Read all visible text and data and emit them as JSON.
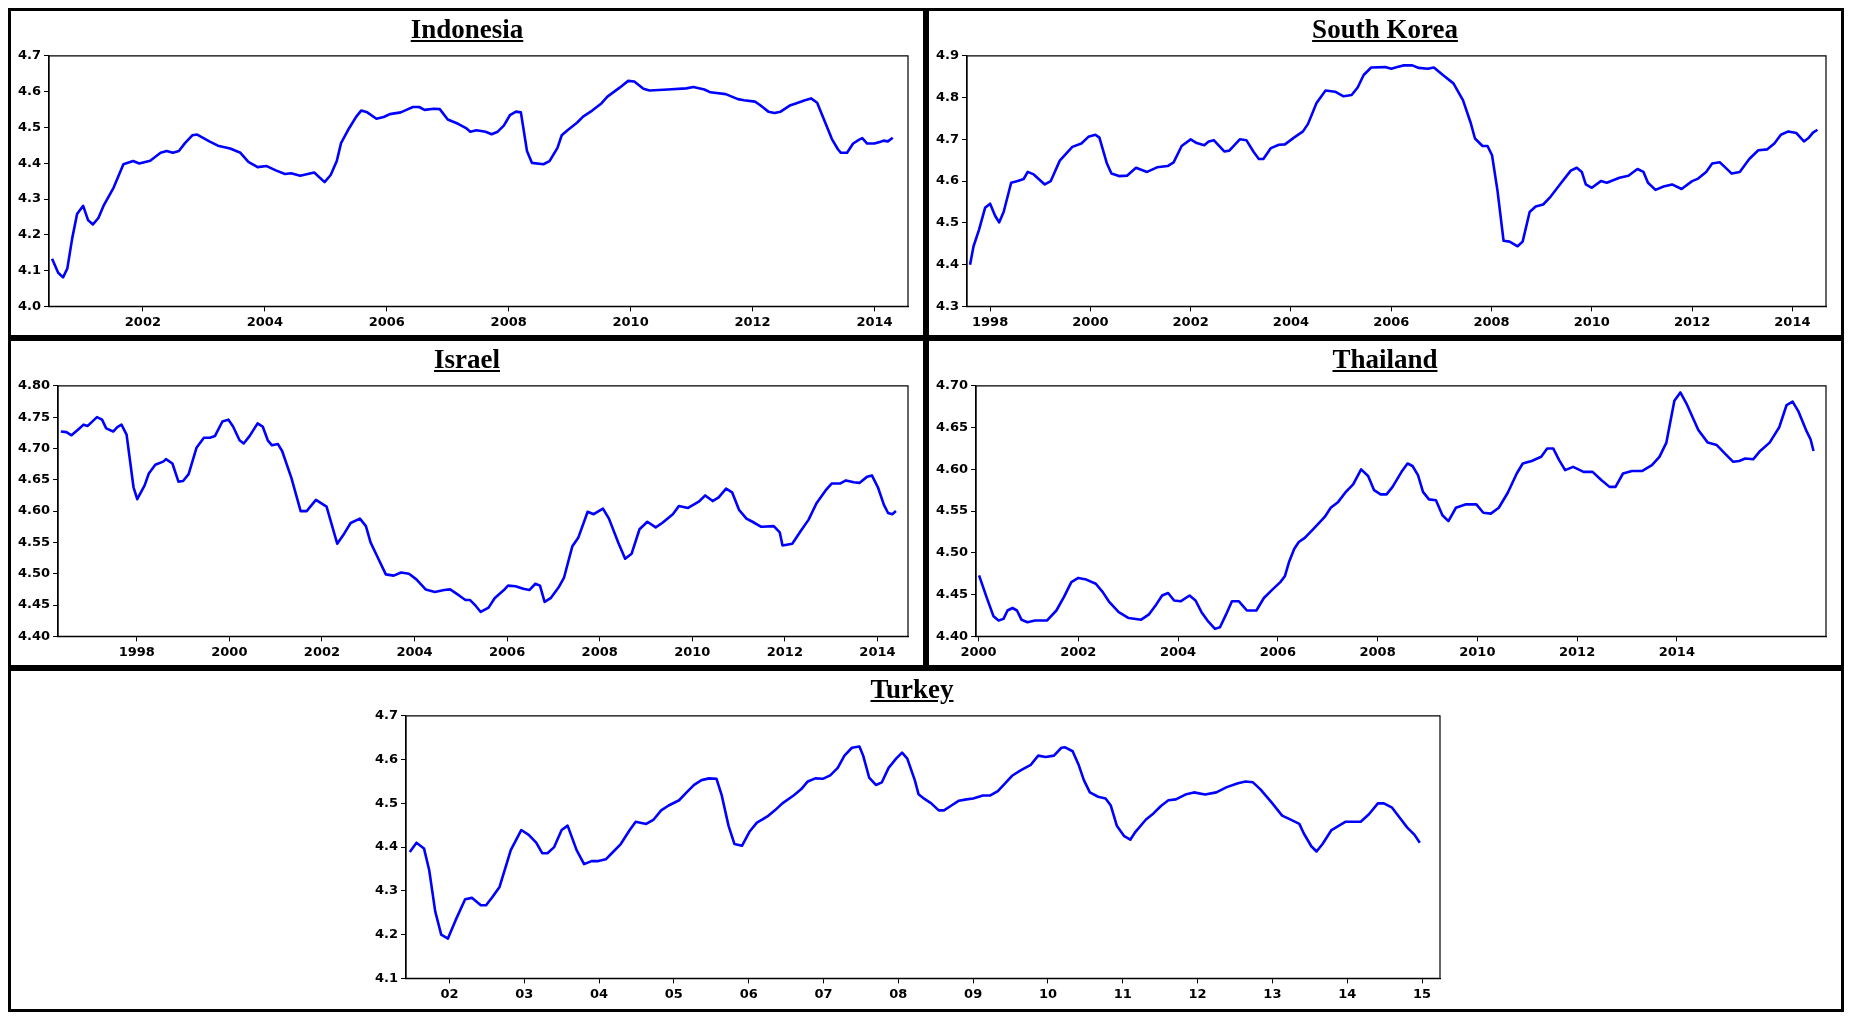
{
  "chart_data": [
    {
      "type": "line",
      "title": "Indonesia",
      "color": "#0000ff",
      "x": [
        2001.01,
        2001.11,
        2001.19,
        2001.26,
        2001.34,
        2001.42,
        2001.52,
        2001.6,
        2001.68,
        2001.77,
        2001.86,
        2002.02,
        2002.18,
        2002.34,
        2002.44,
        2002.62,
        2002.79,
        2002.89,
        2002.99,
        2003.09,
        2003.19,
        2003.31,
        2003.39,
        2003.59,
        2003.73,
        2003.93,
        2004.1,
        2004.23,
        2004.38,
        2004.53,
        2004.68,
        2004.83,
        2004.93,
        2005.08,
        2005.31,
        2005.48,
        2005.58,
        2005.68,
        2005.75,
        2005.88,
        2006.0,
        2006.08,
        2006.18,
        2006.33,
        2006.45,
        2006.55,
        2006.73,
        2006.85,
        2006.93,
        2007.03,
        2007.12,
        2007.27,
        2007.37,
        2007.5,
        2007.67,
        2007.8,
        2007.87,
        2007.97,
        2008.12,
        2008.22,
        2008.32,
        2008.42,
        2008.52,
        2008.62,
        2008.7,
        2008.8,
        2008.88,
        2009.07,
        2009.17,
        2009.3,
        2009.37,
        2009.47,
        2009.62,
        2009.72,
        2009.87,
        2010.02,
        2010.12,
        2010.32,
        2010.46,
        2010.56,
        2010.71,
        2010.81,
        2011.11,
        2011.41,
        2011.53,
        2011.71,
        2011.81,
        2012.06,
        2012.26,
        2012.36,
        2012.54,
        2012.61,
        2012.76,
        2012.86,
        2012.96,
        2013.11,
        2013.21,
        2013.36,
        2013.46,
        2013.56,
        2013.66,
        2013.8,
        2013.9,
        2013.95,
        2014.05,
        2014.15,
        2014.25,
        2014.3,
        2014.38,
        2014.5,
        2014.6,
        2014.65,
        2014.72,
        2014.8
      ],
      "values": [
        4.133,
        4.094,
        4.081,
        4.106,
        4.19,
        4.258,
        4.281,
        4.241,
        4.229,
        4.247,
        4.283,
        4.332,
        4.397,
        4.406,
        4.399,
        4.407,
        4.429,
        4.434,
        4.429,
        4.434,
        4.456,
        4.478,
        4.48,
        4.461,
        4.449,
        4.441,
        4.429,
        4.404,
        4.389,
        4.392,
        4.38,
        4.37,
        4.372,
        4.365,
        4.374,
        4.347,
        4.367,
        4.406,
        4.456,
        4.497,
        4.53,
        4.547,
        4.542,
        4.524,
        4.529,
        4.537,
        4.542,
        4.551,
        4.557,
        4.557,
        4.549,
        4.552,
        4.551,
        4.522,
        4.51,
        4.498,
        4.488,
        4.492,
        4.488,
        4.481,
        4.488,
        4.505,
        4.534,
        4.544,
        4.542,
        4.434,
        4.401,
        4.397,
        4.406,
        4.443,
        4.478,
        4.493,
        4.513,
        4.53,
        4.547,
        4.567,
        4.586,
        4.611,
        4.63,
        4.628,
        4.608,
        4.603,
        4.606,
        4.609,
        4.613,
        4.606,
        4.598,
        4.593,
        4.579,
        4.576,
        4.572,
        4.564,
        4.544,
        4.54,
        4.544,
        4.561,
        4.567,
        4.576,
        4.581,
        4.569,
        4.527,
        4.468,
        4.439,
        4.429,
        4.429,
        4.455,
        4.466,
        4.47,
        4.455,
        4.455,
        4.46,
        4.463,
        4.461,
        4.471
      ],
      "xlim": [
        2000.96,
        2015.05
      ],
      "ylim": [
        4.0,
        4.7
      ],
      "xticks": [
        {
          "value": 2002.5,
          "label": "2002"
        },
        {
          "value": 2004.5,
          "label": "2004"
        },
        {
          "value": 2006.5,
          "label": "2006"
        },
        {
          "value": 2008.5,
          "label": "2008"
        },
        {
          "value": 2010.5,
          "label": "2010"
        },
        {
          "value": 2012.5,
          "label": "2012"
        },
        {
          "value": 2014.5,
          "label": "2014"
        }
      ],
      "yticks": [
        {
          "value": 4.0,
          "label": "4.0"
        },
        4.1,
        4.2,
        4.3,
        4.4,
        4.5,
        4.6,
        4.7
      ]
    },
    {
      "type": "line",
      "title": "South Korea",
      "color": "#0000ff",
      "x": [
        1998.1,
        1998.17,
        1998.28,
        1998.4,
        1998.5,
        1998.6,
        1998.68,
        1998.77,
        1998.92,
        1999.05,
        1999.17,
        1999.25,
        1999.37,
        1999.59,
        1999.71,
        1999.89,
        2000.14,
        2000.32,
        2000.46,
        2000.6,
        2000.68,
        2000.83,
        2000.92,
        2001.07,
        2001.23,
        2001.41,
        2001.63,
        2001.83,
        2002.04,
        2002.16,
        2002.32,
        2002.5,
        2002.62,
        2002.77,
        2002.86,
        2002.96,
        2003.17,
        2003.27,
        2003.48,
        2003.61,
        2003.76,
        2003.86,
        2003.95,
        2004.1,
        2004.26,
        2004.38,
        2004.56,
        2004.74,
        2004.84,
        2005.01,
        2005.19,
        2005.38,
        2005.55,
        2005.71,
        2005.83,
        2005.95,
        2006.1,
        2006.38,
        2006.5,
        2006.62,
        2006.74,
        2006.92,
        2007.05,
        2007.23,
        2007.35,
        2007.53,
        2007.74,
        2007.93,
        2008.08,
        2008.17,
        2008.32,
        2008.42,
        2008.51,
        2008.62,
        2008.74,
        2008.86,
        2009.02,
        2009.12,
        2009.26,
        2009.38,
        2009.53,
        2009.68,
        2009.89,
        2010.08,
        2010.2,
        2010.3,
        2010.38,
        2010.5,
        2010.68,
        2010.8,
        2011.05,
        2011.23,
        2011.41,
        2011.53,
        2011.62,
        2011.77,
        2011.93,
        2012.1,
        2012.29,
        2012.5,
        2012.62,
        2012.78,
        2012.9,
        2013.05,
        2013.15,
        2013.29,
        2013.45,
        2013.64,
        2013.82,
        2014.0,
        2014.14,
        2014.27,
        2014.42,
        2014.58,
        2014.73,
        2014.82,
        2014.91,
        2015.0
      ],
      "values": [
        4.4,
        4.444,
        4.484,
        4.536,
        4.546,
        4.517,
        4.501,
        4.526,
        4.596,
        4.6,
        4.605,
        4.622,
        4.616,
        4.592,
        4.6,
        4.649,
        4.682,
        4.69,
        4.706,
        4.711,
        4.704,
        4.642,
        4.618,
        4.612,
        4.613,
        4.632,
        4.622,
        4.633,
        4.636,
        4.645,
        4.684,
        4.7,
        4.691,
        4.686,
        4.695,
        4.698,
        4.671,
        4.673,
        4.7,
        4.698,
        4.669,
        4.653,
        4.653,
        4.679,
        4.687,
        4.688,
        4.704,
        4.719,
        4.737,
        4.787,
        4.817,
        4.814,
        4.803,
        4.806,
        4.824,
        4.854,
        4.872,
        4.873,
        4.869,
        4.873,
        4.877,
        4.877,
        4.871,
        4.869,
        4.872,
        4.854,
        4.834,
        4.794,
        4.741,
        4.702,
        4.684,
        4.684,
        4.662,
        4.576,
        4.457,
        4.455,
        4.444,
        4.455,
        4.526,
        4.539,
        4.544,
        4.563,
        4.596,
        4.625,
        4.632,
        4.622,
        4.592,
        4.584,
        4.6,
        4.596,
        4.608,
        4.613,
        4.629,
        4.622,
        4.596,
        4.579,
        4.587,
        4.592,
        4.581,
        4.6,
        4.606,
        4.622,
        4.642,
        4.645,
        4.634,
        4.618,
        4.622,
        4.653,
        4.674,
        4.676,
        4.69,
        4.711,
        4.719,
        4.715,
        4.695,
        4.703,
        4.716,
        4.723
      ],
      "xlim": [
        1998.04,
        2015.17
      ],
      "ylim": [
        4.3,
        4.9
      ],
      "xticks": [
        {
          "value": 1998.5,
          "label": "1998"
        },
        {
          "value": 2000.5,
          "label": "2000"
        },
        {
          "value": 2002.5,
          "label": "2002"
        },
        {
          "value": 2004.5,
          "label": "2004"
        },
        {
          "value": 2006.5,
          "label": "2006"
        },
        {
          "value": 2008.5,
          "label": "2008"
        },
        {
          "value": 2010.5,
          "label": "2010"
        },
        {
          "value": 2012.5,
          "label": "2012"
        },
        {
          "value": 2014.5,
          "label": "2014"
        }
      ],
      "yticks": [
        4.3,
        4.4,
        4.5,
        4.6,
        4.7,
        4.8,
        4.9
      ]
    },
    {
      "type": "line",
      "title": "Israel",
      "color": "#0000ff",
      "x": [
        1996.86,
        1996.98,
        1997.09,
        1997.26,
        1997.35,
        1997.44,
        1997.64,
        1997.75,
        1997.84,
        1997.99,
        1998.08,
        1998.17,
        1998.28,
        1998.43,
        1998.51,
        1998.67,
        1998.76,
        1998.9,
        1999.07,
        1999.13,
        1999.27,
        1999.4,
        1999.5,
        1999.62,
        1999.79,
        1999.95,
        2000.08,
        2000.19,
        2000.35,
        2000.48,
        2000.58,
        2000.72,
        2000.81,
        2000.94,
        2001.11,
        2001.22,
        2001.33,
        2001.42,
        2001.55,
        2001.64,
        2001.84,
        2002.04,
        2002.17,
        2002.37,
        2002.6,
        2002.83,
        2002.98,
        2003.12,
        2003.32,
        2003.45,
        2003.55,
        2003.68,
        2003.88,
        2004.05,
        2004.21,
        2004.38,
        2004.54,
        2004.74,
        2004.94,
        2005.14,
        2005.27,
        2005.47,
        2005.6,
        2005.7,
        2005.82,
        2005.93,
        2006.1,
        2006.23,
        2006.43,
        2006.52,
        2006.68,
        2006.85,
        2006.98,
        2007.11,
        2007.21,
        2007.31,
        2007.44,
        2007.61,
        2007.73,
        2007.91,
        2008.04,
        2008.24,
        2008.37,
        2008.57,
        2008.7,
        2008.9,
        2009.05,
        2009.19,
        2009.36,
        2009.53,
        2009.71,
        2009.85,
        2010.08,
        2010.21,
        2010.41,
        2010.64,
        2010.78,
        2010.94,
        2011.07,
        2011.23,
        2011.36,
        2011.51,
        2011.67,
        2011.8,
        2011.99,
        2012.26,
        2012.39,
        2012.45,
        2012.66,
        2012.85,
        2013.01,
        2013.18,
        2013.38,
        2013.51,
        2013.69,
        2013.82,
        2013.99,
        2014.11,
        2014.28,
        2014.38,
        2014.51,
        2014.64,
        2014.73,
        2014.82,
        2014.9
      ],
      "values": [
        4.727,
        4.726,
        4.721,
        4.732,
        4.738,
        4.736,
        4.75,
        4.746,
        4.732,
        4.727,
        4.734,
        4.738,
        4.722,
        4.638,
        4.619,
        4.641,
        4.66,
        4.674,
        4.679,
        4.683,
        4.676,
        4.647,
        4.648,
        4.659,
        4.701,
        4.717,
        4.717,
        4.72,
        4.743,
        4.746,
        4.735,
        4.713,
        4.708,
        4.72,
        4.74,
        4.735,
        4.713,
        4.705,
        4.707,
        4.696,
        4.653,
        4.6,
        4.6,
        4.618,
        4.607,
        4.548,
        4.564,
        4.581,
        4.588,
        4.576,
        4.55,
        4.53,
        4.499,
        4.497,
        4.502,
        4.5,
        4.491,
        4.475,
        4.471,
        4.474,
        4.475,
        4.465,
        4.458,
        4.458,
        4.449,
        4.439,
        4.446,
        4.461,
        4.474,
        4.481,
        4.48,
        4.476,
        4.474,
        4.484,
        4.481,
        4.455,
        4.461,
        4.478,
        4.494,
        4.544,
        4.558,
        4.599,
        4.595,
        4.604,
        4.588,
        4.55,
        4.524,
        4.532,
        4.571,
        4.583,
        4.574,
        4.581,
        4.595,
        4.608,
        4.605,
        4.615,
        4.625,
        4.616,
        4.622,
        4.636,
        4.63,
        4.602,
        4.588,
        4.583,
        4.575,
        4.576,
        4.566,
        4.545,
        4.548,
        4.569,
        4.586,
        4.612,
        4.633,
        4.644,
        4.644,
        4.649,
        4.646,
        4.645,
        4.655,
        4.657,
        4.638,
        4.61,
        4.597,
        4.595,
        4.6
      ],
      "xlim": [
        1996.8,
        2015.16
      ],
      "ylim": [
        4.4,
        4.8
      ],
      "xticks": [
        {
          "value": 1998.5,
          "label": "1998"
        },
        {
          "value": 2000.5,
          "label": "2000"
        },
        {
          "value": 2002.5,
          "label": "2002"
        },
        {
          "value": 2004.5,
          "label": "2004"
        },
        {
          "value": 2006.5,
          "label": "2006"
        },
        {
          "value": 2008.5,
          "label": "2008"
        },
        {
          "value": 2010.5,
          "label": "2010"
        },
        {
          "value": 2012.5,
          "label": "2012"
        },
        {
          "value": 2014.5,
          "label": "2014"
        }
      ],
      "yticks": [
        {
          "value": 4.4,
          "label": "4.40"
        },
        {
          "value": 4.45,
          "label": "4.45"
        },
        {
          "value": 4.5,
          "label": "4.50"
        },
        {
          "value": 4.55,
          "label": "4.55"
        },
        {
          "value": 4.6,
          "label": "4.60"
        },
        {
          "value": 4.65,
          "label": "4.65"
        },
        {
          "value": 4.7,
          "label": "4.70"
        },
        {
          "value": 4.75,
          "label": "4.75"
        },
        {
          "value": 4.8,
          "label": "4.80"
        }
      ]
    },
    {
      "type": "line",
      "title": "Thailand",
      "color": "#0000ff",
      "x": [
        2000.01,
        2000.16,
        2000.3,
        2000.4,
        2000.5,
        2000.58,
        2000.68,
        2000.77,
        2000.86,
        2000.98,
        2001.13,
        2001.37,
        2001.56,
        2001.71,
        2001.86,
        2002.0,
        2002.16,
        2002.35,
        2002.49,
        2002.61,
        2002.81,
        2003.01,
        2003.26,
        2003.41,
        2003.56,
        2003.68,
        2003.8,
        2003.92,
        2004.05,
        2004.23,
        2004.35,
        2004.47,
        2004.59,
        2004.74,
        2004.84,
        2004.96,
        2005.08,
        2005.22,
        2005.38,
        2005.57,
        2005.72,
        2005.89,
        2006.05,
        2006.14,
        2006.23,
        2006.33,
        2006.42,
        2006.54,
        2006.72,
        2006.94,
        2007.06,
        2007.21,
        2007.35,
        2007.51,
        2007.67,
        2007.81,
        2007.93,
        2008.06,
        2008.18,
        2008.3,
        2008.48,
        2008.6,
        2008.7,
        2008.81,
        2008.91,
        2009.03,
        2009.17,
        2009.3,
        2009.42,
        2009.57,
        2009.76,
        2009.98,
        2010.12,
        2010.27,
        2010.43,
        2010.61,
        2010.79,
        2010.91,
        2011.09,
        2011.28,
        2011.4,
        2011.52,
        2011.64,
        2011.76,
        2011.92,
        2012.13,
        2012.31,
        2012.49,
        2012.65,
        2012.77,
        2012.92,
        2013.1,
        2013.3,
        2013.5,
        2013.65,
        2013.79,
        2013.95,
        2014.07,
        2014.19,
        2014.43,
        2014.62,
        2014.8,
        2014.98,
        2015.13,
        2015.25,
        2015.37,
        2015.53,
        2015.67,
        2015.86,
        2016.05,
        2016.2,
        2016.32,
        2016.44,
        2016.59,
        2016.68,
        2016.74
      ],
      "values": [
        4.473,
        4.447,
        4.424,
        4.419,
        4.421,
        4.431,
        4.434,
        4.431,
        4.42,
        4.417,
        4.419,
        4.419,
        4.431,
        4.447,
        4.465,
        4.47,
        4.468,
        4.463,
        4.453,
        4.442,
        4.429,
        4.422,
        4.42,
        4.426,
        4.438,
        4.449,
        4.452,
        4.443,
        4.442,
        4.449,
        4.443,
        4.429,
        4.419,
        4.409,
        4.411,
        4.426,
        4.442,
        4.442,
        4.431,
        4.431,
        4.446,
        4.456,
        4.465,
        4.472,
        4.49,
        4.505,
        4.513,
        4.518,
        4.529,
        4.543,
        4.554,
        4.561,
        4.572,
        4.582,
        4.6,
        4.592,
        4.575,
        4.57,
        4.57,
        4.579,
        4.597,
        4.607,
        4.604,
        4.593,
        4.573,
        4.564,
        4.563,
        4.545,
        4.538,
        4.554,
        4.558,
        4.558,
        4.548,
        4.547,
        4.554,
        4.572,
        4.595,
        4.607,
        4.61,
        4.615,
        4.625,
        4.625,
        4.611,
        4.599,
        4.603,
        4.597,
        4.597,
        4.587,
        4.579,
        4.579,
        4.595,
        4.598,
        4.598,
        4.605,
        4.615,
        4.632,
        4.682,
        4.692,
        4.679,
        4.647,
        4.632,
        4.629,
        4.618,
        4.609,
        4.61,
        4.613,
        4.612,
        4.622,
        4.632,
        4.65,
        4.677,
        4.681,
        4.669,
        4.647,
        4.636,
        4.622
      ],
      "xlim": [
        1999.95,
        2016.99
      ],
      "ylim": [
        4.4,
        4.7
      ],
      "xticks": [
        2000,
        2002,
        2004,
        2006,
        2008,
        2010,
        2012,
        2014
      ],
      "yticks": [
        {
          "value": 4.4,
          "label": "4.40"
        },
        {
          "value": 4.45,
          "label": "4.45"
        },
        {
          "value": 4.5,
          "label": "4.50"
        },
        {
          "value": 4.55,
          "label": "4.55"
        },
        {
          "value": 4.6,
          "label": "4.60"
        },
        {
          "value": 4.65,
          "label": "4.65"
        },
        {
          "value": 4.7,
          "label": "4.70"
        }
      ]
    },
    {
      "type": "line",
      "title": "Turkey",
      "color": "#0000ff",
      "x": [
        1.47,
        1.56,
        1.66,
        1.73,
        1.81,
        1.89,
        1.98,
        2.08,
        2.21,
        2.3,
        2.42,
        2.49,
        2.57,
        2.67,
        2.82,
        2.96,
        3.06,
        3.16,
        3.24,
        3.31,
        3.4,
        3.5,
        3.58,
        3.7,
        3.8,
        3.9,
        3.99,
        4.09,
        4.17,
        4.29,
        4.41,
        4.49,
        4.63,
        4.73,
        4.83,
        4.93,
        5.07,
        5.17,
        5.27,
        5.37,
        5.47,
        5.57,
        5.64,
        5.73,
        5.81,
        5.91,
        6.01,
        6.11,
        6.25,
        6.35,
        6.45,
        6.6,
        6.7,
        6.79,
        6.89,
        6.99,
        7.09,
        7.19,
        7.28,
        7.38,
        7.48,
        7.53,
        7.61,
        7.7,
        7.78,
        7.87,
        7.97,
        8.05,
        8.12,
        8.22,
        8.27,
        8.35,
        8.44,
        8.54,
        8.61,
        8.71,
        8.81,
        8.91,
        9.0,
        9.13,
        9.23,
        9.33,
        9.43,
        9.52,
        9.64,
        9.77,
        9.87,
        9.97,
        10.08,
        10.18,
        10.23,
        10.33,
        10.41,
        10.48,
        10.56,
        10.67,
        10.77,
        10.84,
        10.92,
        11.02,
        11.1,
        11.17,
        11.31,
        11.41,
        11.51,
        11.61,
        11.71,
        11.85,
        11.95,
        12.1,
        12.25,
        12.39,
        12.54,
        12.64,
        12.74,
        12.84,
        12.98,
        13.13,
        13.23,
        13.36,
        13.42,
        13.52,
        13.59,
        13.67,
        13.79,
        13.89,
        13.98,
        14.11,
        14.18,
        14.29,
        14.41,
        14.49,
        14.6,
        14.72,
        14.8,
        14.9,
        14.97
      ],
      "values": [
        4.389,
        4.41,
        4.397,
        4.347,
        4.253,
        4.2,
        4.191,
        4.232,
        4.281,
        4.284,
        4.267,
        4.267,
        4.285,
        4.309,
        4.393,
        4.439,
        4.428,
        4.41,
        4.386,
        4.386,
        4.4,
        4.439,
        4.449,
        4.393,
        4.361,
        4.368,
        4.368,
        4.372,
        4.386,
        4.407,
        4.439,
        4.458,
        4.453,
        4.463,
        4.484,
        4.495,
        4.507,
        4.525,
        4.542,
        4.553,
        4.557,
        4.556,
        4.518,
        4.449,
        4.407,
        4.403,
        4.435,
        4.456,
        4.47,
        4.484,
        4.5,
        4.518,
        4.532,
        4.55,
        4.557,
        4.556,
        4.564,
        4.581,
        4.609,
        4.627,
        4.63,
        4.609,
        4.559,
        4.542,
        4.548,
        4.581,
        4.602,
        4.616,
        4.602,
        4.553,
        4.521,
        4.51,
        4.5,
        4.484,
        4.484,
        4.495,
        4.506,
        4.509,
        4.511,
        4.518,
        4.518,
        4.528,
        4.546,
        4.563,
        4.576,
        4.588,
        4.609,
        4.606,
        4.609,
        4.627,
        4.628,
        4.619,
        4.588,
        4.553,
        4.525,
        4.515,
        4.511,
        4.495,
        4.449,
        4.425,
        4.417,
        4.435,
        4.463,
        4.477,
        4.494,
        4.507,
        4.509,
        4.521,
        4.525,
        4.52,
        4.525,
        4.537,
        4.546,
        4.55,
        4.548,
        4.532,
        4.504,
        4.472,
        4.464,
        4.453,
        4.431,
        4.402,
        4.39,
        4.407,
        4.439,
        4.449,
        4.458,
        4.458,
        4.458,
        4.475,
        4.5,
        4.5,
        4.49,
        4.463,
        4.445,
        4.428,
        4.41
      ],
      "xlim": [
        1.42,
        15.24
      ],
      "ylim": [
        4.1,
        4.7
      ],
      "xticks": [
        {
          "value": 2,
          "label": "02"
        },
        {
          "value": 3,
          "label": "03"
        },
        {
          "value": 4,
          "label": "04"
        },
        {
          "value": 5,
          "label": "05"
        },
        {
          "value": 6,
          "label": "06"
        },
        {
          "value": 7,
          "label": "07"
        },
        {
          "value": 8,
          "label": "08"
        },
        {
          "value": 9,
          "label": "09"
        },
        10,
        11,
        12,
        13,
        14,
        15
      ],
      "yticks": [
        4.1,
        4.2,
        4.3,
        4.4,
        4.5,
        4.6,
        4.7
      ]
    }
  ]
}
